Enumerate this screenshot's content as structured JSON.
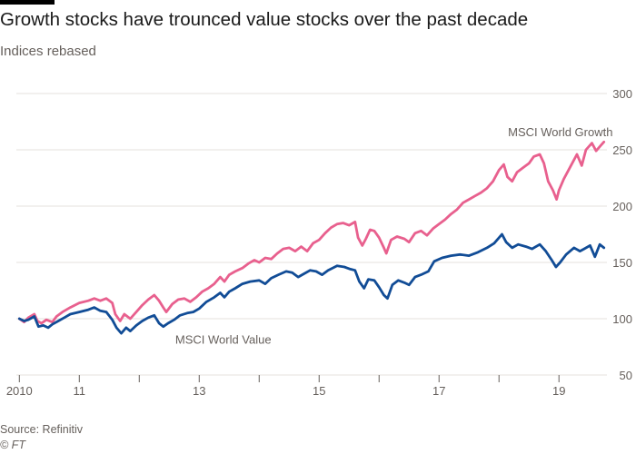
{
  "header": {
    "title": "Growth stocks have trounced value stocks over the past decade",
    "subtitle": "Indices rebased"
  },
  "footer": {
    "source": "Source: Refinitiv",
    "credit": "© FT"
  },
  "colors": {
    "growth": "#e8608e",
    "value": "#114c96",
    "grid": "#e6e2dc",
    "axis_text": "#66605c"
  },
  "chart_data": {
    "type": "line",
    "title": "Growth stocks have trounced value stocks over the past decade",
    "subtitle": "Indices rebased",
    "xlabel": "",
    "ylabel": "",
    "xlim": [
      2009.95,
      2019.8
    ],
    "ylim": [
      50,
      300
    ],
    "x_ticks": [
      2010,
      2011,
      2012,
      2013,
      2014,
      2015,
      2016,
      2017,
      2018,
      2019
    ],
    "x_tick_labels": [
      "2010",
      "11",
      "",
      "13",
      "",
      "15",
      "",
      "17",
      "",
      "19"
    ],
    "y_ticks": [
      50,
      100,
      150,
      200,
      250,
      300
    ],
    "y_tick_labels": [
      "50",
      "100",
      "150",
      "200",
      "250",
      "300"
    ],
    "grid": true,
    "series": [
      {
        "name": "MSCI World Growth",
        "color": "#e8608e",
        "points": [
          [
            2010.0,
            100
          ],
          [
            2010.08,
            97
          ],
          [
            2010.15,
            101
          ],
          [
            2010.25,
            104
          ],
          [
            2010.3,
            98
          ],
          [
            2010.37,
            96
          ],
          [
            2010.45,
            99
          ],
          [
            2010.55,
            97
          ],
          [
            2010.62,
            102
          ],
          [
            2010.72,
            106
          ],
          [
            2010.85,
            110
          ],
          [
            2011.0,
            114
          ],
          [
            2011.15,
            116
          ],
          [
            2011.25,
            118
          ],
          [
            2011.35,
            116
          ],
          [
            2011.45,
            118
          ],
          [
            2011.55,
            114
          ],
          [
            2011.6,
            104
          ],
          [
            2011.68,
            98
          ],
          [
            2011.75,
            104
          ],
          [
            2011.85,
            100
          ],
          [
            2011.95,
            106
          ],
          [
            2012.05,
            112
          ],
          [
            2012.15,
            117
          ],
          [
            2012.25,
            121
          ],
          [
            2012.33,
            116
          ],
          [
            2012.4,
            110
          ],
          [
            2012.45,
            106
          ],
          [
            2012.55,
            113
          ],
          [
            2012.65,
            117
          ],
          [
            2012.75,
            118
          ],
          [
            2012.85,
            115
          ],
          [
            2012.95,
            119
          ],
          [
            2013.05,
            124
          ],
          [
            2013.15,
            127
          ],
          [
            2013.25,
            131
          ],
          [
            2013.35,
            137
          ],
          [
            2013.42,
            133
          ],
          [
            2013.5,
            139
          ],
          [
            2013.6,
            142
          ],
          [
            2013.72,
            145
          ],
          [
            2013.82,
            149
          ],
          [
            2013.92,
            152
          ],
          [
            2014.0,
            150
          ],
          [
            2014.1,
            154
          ],
          [
            2014.2,
            153
          ],
          [
            2014.3,
            158
          ],
          [
            2014.4,
            162
          ],
          [
            2014.5,
            163
          ],
          [
            2014.6,
            160
          ],
          [
            2014.7,
            164
          ],
          [
            2014.8,
            160
          ],
          [
            2014.9,
            167
          ],
          [
            2015.0,
            170
          ],
          [
            2015.1,
            176
          ],
          [
            2015.2,
            181
          ],
          [
            2015.3,
            184
          ],
          [
            2015.4,
            185
          ],
          [
            2015.5,
            183
          ],
          [
            2015.6,
            186
          ],
          [
            2015.65,
            172
          ],
          [
            2015.72,
            165
          ],
          [
            2015.78,
            171
          ],
          [
            2015.85,
            179
          ],
          [
            2015.92,
            178
          ],
          [
            2016.0,
            172
          ],
          [
            2016.08,
            163
          ],
          [
            2016.12,
            158
          ],
          [
            2016.2,
            170
          ],
          [
            2016.3,
            173
          ],
          [
            2016.42,
            171
          ],
          [
            2016.5,
            168
          ],
          [
            2016.6,
            176
          ],
          [
            2016.7,
            178
          ],
          [
            2016.8,
            174
          ],
          [
            2016.9,
            180
          ],
          [
            2017.0,
            184
          ],
          [
            2017.1,
            188
          ],
          [
            2017.2,
            193
          ],
          [
            2017.3,
            197
          ],
          [
            2017.4,
            203
          ],
          [
            2017.5,
            206
          ],
          [
            2017.6,
            209
          ],
          [
            2017.7,
            212
          ],
          [
            2017.8,
            216
          ],
          [
            2017.9,
            222
          ],
          [
            2018.0,
            232
          ],
          [
            2018.08,
            237
          ],
          [
            2018.14,
            226
          ],
          [
            2018.22,
            222
          ],
          [
            2018.3,
            230
          ],
          [
            2018.4,
            234
          ],
          [
            2018.5,
            238
          ],
          [
            2018.58,
            244
          ],
          [
            2018.68,
            246
          ],
          [
            2018.75,
            238
          ],
          [
            2018.82,
            222
          ],
          [
            2018.9,
            214
          ],
          [
            2018.96,
            206
          ],
          [
            2019.0,
            214
          ],
          [
            2019.08,
            224
          ],
          [
            2019.18,
            234
          ],
          [
            2019.3,
            246
          ],
          [
            2019.38,
            236
          ],
          [
            2019.45,
            250
          ],
          [
            2019.55,
            256
          ],
          [
            2019.62,
            249
          ],
          [
            2019.7,
            254
          ],
          [
            2019.75,
            257
          ]
        ]
      },
      {
        "name": "MSCI World Value",
        "color": "#114c96",
        "points": [
          [
            2010.0,
            100
          ],
          [
            2010.08,
            98
          ],
          [
            2010.15,
            99
          ],
          [
            2010.25,
            102
          ],
          [
            2010.32,
            93
          ],
          [
            2010.4,
            94
          ],
          [
            2010.48,
            92
          ],
          [
            2010.55,
            95
          ],
          [
            2010.65,
            98
          ],
          [
            2010.75,
            101
          ],
          [
            2010.85,
            104
          ],
          [
            2011.0,
            106
          ],
          [
            2011.15,
            108
          ],
          [
            2011.25,
            110
          ],
          [
            2011.35,
            107
          ],
          [
            2011.45,
            106
          ],
          [
            2011.55,
            99
          ],
          [
            2011.62,
            92
          ],
          [
            2011.7,
            87
          ],
          [
            2011.78,
            92
          ],
          [
            2011.85,
            89
          ],
          [
            2011.95,
            94
          ],
          [
            2012.05,
            98
          ],
          [
            2012.15,
            101
          ],
          [
            2012.25,
            103
          ],
          [
            2012.33,
            96
          ],
          [
            2012.4,
            93
          ],
          [
            2012.48,
            96
          ],
          [
            2012.58,
            99
          ],
          [
            2012.68,
            103
          ],
          [
            2012.8,
            105
          ],
          [
            2012.9,
            106
          ],
          [
            2013.0,
            109
          ],
          [
            2013.12,
            115
          ],
          [
            2013.25,
            119
          ],
          [
            2013.35,
            123
          ],
          [
            2013.42,
            119
          ],
          [
            2013.5,
            124
          ],
          [
            2013.6,
            127
          ],
          [
            2013.72,
            131
          ],
          [
            2013.85,
            133
          ],
          [
            2014.0,
            134
          ],
          [
            2014.1,
            131
          ],
          [
            2014.2,
            136
          ],
          [
            2014.32,
            139
          ],
          [
            2014.45,
            142
          ],
          [
            2014.55,
            141
          ],
          [
            2014.65,
            137
          ],
          [
            2014.75,
            140
          ],
          [
            2014.85,
            143
          ],
          [
            2014.95,
            142
          ],
          [
            2015.05,
            139
          ],
          [
            2015.15,
            143
          ],
          [
            2015.3,
            147
          ],
          [
            2015.42,
            146
          ],
          [
            2015.52,
            144
          ],
          [
            2015.6,
            143
          ],
          [
            2015.67,
            133
          ],
          [
            2015.75,
            127
          ],
          [
            2015.82,
            135
          ],
          [
            2015.92,
            134
          ],
          [
            2016.0,
            128
          ],
          [
            2016.08,
            121
          ],
          [
            2016.14,
            118
          ],
          [
            2016.22,
            130
          ],
          [
            2016.32,
            134
          ],
          [
            2016.42,
            132
          ],
          [
            2016.5,
            130
          ],
          [
            2016.6,
            137
          ],
          [
            2016.7,
            139
          ],
          [
            2016.82,
            142
          ],
          [
            2016.92,
            151
          ],
          [
            2017.05,
            154
          ],
          [
            2017.2,
            156
          ],
          [
            2017.35,
            157
          ],
          [
            2017.5,
            156
          ],
          [
            2017.65,
            159
          ],
          [
            2017.8,
            163
          ],
          [
            2017.92,
            167
          ],
          [
            2018.05,
            175
          ],
          [
            2018.12,
            168
          ],
          [
            2018.22,
            163
          ],
          [
            2018.32,
            166
          ],
          [
            2018.45,
            164
          ],
          [
            2018.55,
            162
          ],
          [
            2018.68,
            166
          ],
          [
            2018.78,
            160
          ],
          [
            2018.88,
            152
          ],
          [
            2018.95,
            146
          ],
          [
            2019.02,
            150
          ],
          [
            2019.12,
            157
          ],
          [
            2019.25,
            163
          ],
          [
            2019.35,
            160
          ],
          [
            2019.42,
            162
          ],
          [
            2019.52,
            165
          ],
          [
            2019.6,
            155
          ],
          [
            2019.68,
            166
          ],
          [
            2019.75,
            163
          ]
        ]
      }
    ],
    "annotations": [
      {
        "text": "MSCI World Growth",
        "x": 2018.15,
        "y": 262
      },
      {
        "text": "MSCI World Value",
        "x": 2012.6,
        "y": 78
      }
    ]
  }
}
